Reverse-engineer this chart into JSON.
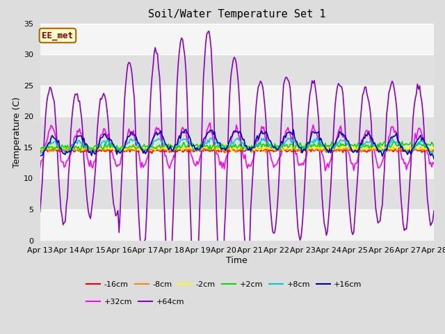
{
  "title": "Soil/Water Temperature Set 1",
  "xlabel": "Time",
  "ylabel": "Temperature (C)",
  "ylim": [
    0,
    35
  ],
  "yticks": [
    0,
    5,
    10,
    15,
    20,
    25,
    30,
    35
  ],
  "x_labels": [
    "Apr 13",
    "Apr 14",
    "Apr 15",
    "Apr 16",
    "Apr 17",
    "Apr 18",
    "Apr 19",
    "Apr 20",
    "Apr 21",
    "Apr 22",
    "Apr 23",
    "Apr 24",
    "Apr 25",
    "Apr 26",
    "Apr 27",
    "Apr 28"
  ],
  "annotation_text": "EE_met",
  "annotation_box_facecolor": "#FFFFCC",
  "annotation_border_color": "#AA6600",
  "annotation_text_color": "#880000",
  "fig_facecolor": "#DDDDDD",
  "plot_facecolor": "#E8E8E8",
  "band_color_light": "#F5F5F5",
  "band_color_dark": "#E0E0E0",
  "grid_color": "#FFFFFF",
  "series": {
    "-16cm": {
      "color": "#FF0000",
      "lw": 1.2,
      "zorder": 5
    },
    "-8cm": {
      "color": "#FF8800",
      "lw": 1.2,
      "zorder": 5
    },
    "-2cm": {
      "color": "#FFFF00",
      "lw": 1.2,
      "zorder": 5
    },
    "+2cm": {
      "color": "#00DD00",
      "lw": 1.2,
      "zorder": 5
    },
    "+8cm": {
      "color": "#00CCCC",
      "lw": 1.2,
      "zorder": 5
    },
    "+16cm": {
      "color": "#0000AA",
      "lw": 1.2,
      "zorder": 5
    },
    "+32cm": {
      "color": "#FF00FF",
      "lw": 1.2,
      "zorder": 4
    },
    "+64cm": {
      "color": "#8800BB",
      "lw": 1.2,
      "zorder": 4
    }
  }
}
